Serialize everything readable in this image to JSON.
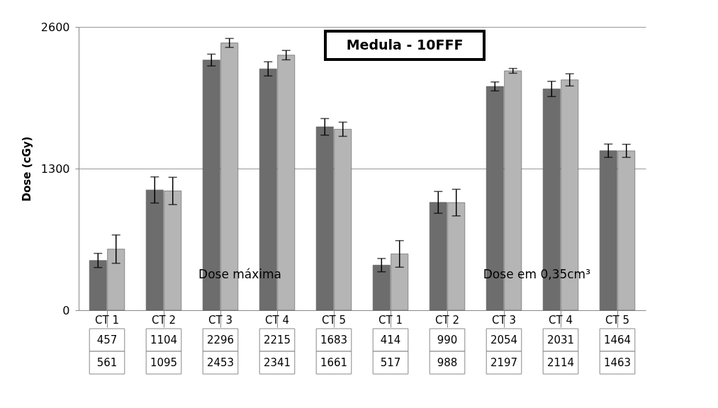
{
  "chart_data": {
    "type": "bar",
    "title": "Medula - 10FFF",
    "ylabel": "Dose (cGy)",
    "categories": [
      "CT 1",
      "CT 2",
      "CT 3",
      "CT 4",
      "CT 5",
      "CT 1",
      "CT 2",
      "CT 3",
      "CT 4",
      "CT 5"
    ],
    "series": [
      {
        "color": "#6d6d6d",
        "values": [
          457,
          1104,
          2296,
          2215,
          1683,
          414,
          990,
          2054,
          2031,
          1464
        ],
        "errors": [
          65,
          120,
          54,
          65,
          76,
          61,
          100,
          41,
          70,
          61
        ]
      },
      {
        "color": "#b5b5b5",
        "values": [
          561,
          1095,
          2453,
          2341,
          1661,
          517,
          988,
          2197,
          2114,
          1463
        ],
        "errors": [
          130,
          125,
          41,
          43,
          65,
          122,
          122,
          22,
          56,
          60
        ]
      }
    ],
    "ylim": [
      0,
      2600
    ],
    "yticks": [
      0,
      1300,
      2600
    ],
    "grid": "y",
    "legend": false,
    "data_labels": true,
    "annotations": [
      "Dose máxima",
      "Dose em 0,35cm³"
    ]
  }
}
